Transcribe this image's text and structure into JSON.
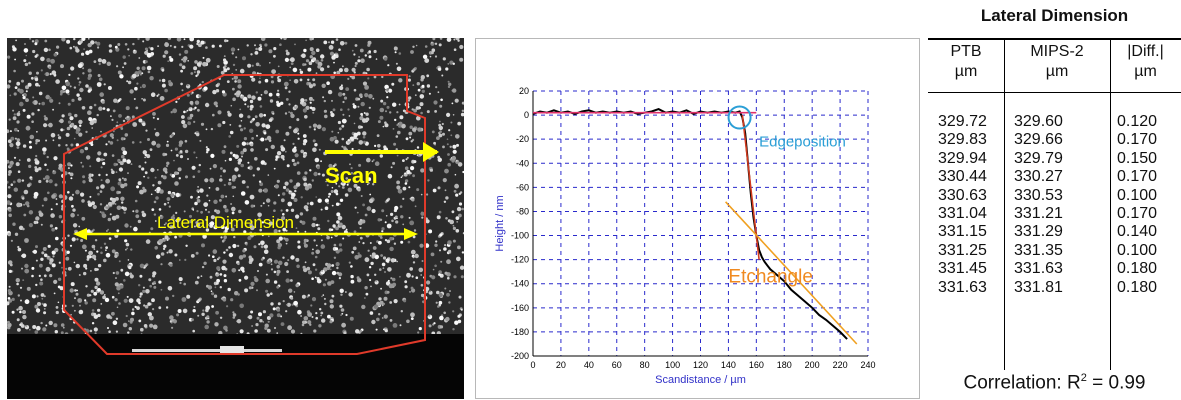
{
  "sem_image": {
    "scan_label": "Scan",
    "lateral_label": "Lateral Dimension",
    "colors": {
      "outline": "#e03a2a",
      "arrow": "#ffff00"
    }
  },
  "chart_data": {
    "type": "line",
    "xlabel": "Scandistance / µm",
    "ylabel": "Height / nm",
    "xlim": [
      0,
      240
    ],
    "ylim": [
      -200,
      20
    ],
    "xticks": [
      0,
      20,
      40,
      60,
      80,
      100,
      120,
      140,
      160,
      180,
      200,
      220,
      240
    ],
    "yticks": [
      20,
      0,
      -20,
      -40,
      -60,
      -80,
      -100,
      -120,
      -140,
      -160,
      -180,
      -200
    ],
    "grid": true,
    "series": [
      {
        "color": "#000000",
        "x": [
          0,
          5,
          10,
          15,
          20,
          25,
          30,
          35,
          40,
          45,
          50,
          55,
          60,
          65,
          70,
          75,
          80,
          85,
          90,
          95,
          100,
          105,
          110,
          115,
          120,
          125,
          130,
          135,
          140,
          145,
          148,
          150,
          152,
          154,
          156,
          158,
          160,
          162,
          164,
          166,
          168,
          170,
          175,
          180,
          185,
          190,
          195,
          200,
          205,
          210,
          215,
          220,
          225
        ],
        "y": [
          1,
          3,
          2,
          4,
          2,
          3,
          1,
          3,
          4,
          2,
          3,
          2,
          3,
          2,
          3,
          1,
          2,
          3,
          5,
          2,
          3,
          2,
          4,
          1,
          3,
          2,
          3,
          2,
          3,
          2,
          3,
          -2,
          -15,
          -40,
          -65,
          -85,
          -100,
          -112,
          -118,
          -122,
          -125,
          -128,
          -133,
          -138,
          -145,
          -150,
          -155,
          -160,
          -166,
          -170,
          -175,
          -180,
          -186
        ]
      },
      {
        "color": "#e0306a",
        "x": [
          0,
          160
        ],
        "y": [
          2,
          2
        ]
      },
      {
        "color": "#d23a1e",
        "x": [
          150,
          162
        ],
        "y": [
          0,
          -120
        ]
      },
      {
        "color": "#f0a020",
        "x": [
          138,
          232
        ],
        "y": [
          -72,
          -190
        ]
      }
    ],
    "annotations": [
      {
        "text": "Edgeposition",
        "color": "#2b9fd6"
      },
      {
        "text": "Etchangle",
        "color": "#f08a20"
      }
    ]
  },
  "table": {
    "title": "Lateral Dimension",
    "headers": [
      {
        "name": "PTB",
        "unit": "µm"
      },
      {
        "name": "MIPS-2",
        "unit": "µm"
      },
      {
        "name": "|Diff.|",
        "unit": "µm"
      }
    ],
    "rows": [
      [
        "329.72",
        "329.60",
        "0.120"
      ],
      [
        "329.83",
        "329.66",
        "0.170"
      ],
      [
        "329.94",
        "329.79",
        "0.150"
      ],
      [
        "330.44",
        "330.27",
        "0.170"
      ],
      [
        "330.63",
        "330.53",
        "0.100"
      ],
      [
        "331.04",
        "331.21",
        "0.170"
      ],
      [
        "331.15",
        "331.29",
        "0.140"
      ],
      [
        "331.25",
        "331.35",
        "0.100"
      ],
      [
        "331.45",
        "331.63",
        "0.180"
      ],
      [
        "331.63",
        "331.81",
        "0.180"
      ]
    ],
    "correlation_prefix": "Correlation: R",
    "correlation_sup": "2",
    "correlation_suffix": " = 0.99"
  }
}
